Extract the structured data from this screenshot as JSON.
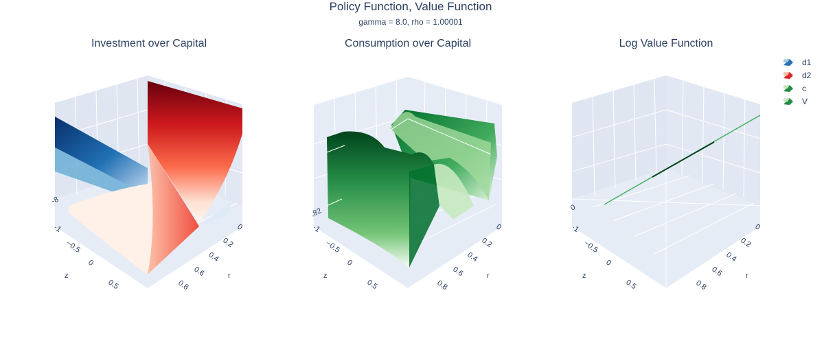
{
  "figure": {
    "title": "Policy Function, Value Function",
    "subtitle": "gamma = 8.0, rho = 1.00001"
  },
  "chart_data": [
    {
      "type": "surface",
      "title": "Investment over Capital",
      "series": [
        {
          "name": "d1",
          "colorscale": "Blues",
          "shape": "flat-sloped-plane"
        },
        {
          "name": "d2",
          "colorscale": "Reds",
          "shape": "parabolic-trough-in-z"
        }
      ],
      "axes": {
        "x": {
          "title": "z",
          "ticks": [
            "-1",
            "−0.5",
            "0",
            "0.5"
          ]
        },
        "y": {
          "title": "r",
          "ticks": [
            "0",
            "0.2",
            "0.4",
            "0.6",
            "0.8"
          ]
        },
        "z": {
          "ticks": [
            "-8"
          ]
        }
      },
      "grid": true
    },
    {
      "type": "surface",
      "title": "Consumption over Capital",
      "series": [
        {
          "name": "c",
          "colorscale": "Greens",
          "shape": "oscillating-ridges-in-z"
        }
      ],
      "axes": {
        "x": {
          "title": "z",
          "ticks": [
            "-1",
            "−0.5",
            "0",
            "0.5"
          ]
        },
        "y": {
          "title": "r",
          "ticks": [
            "0",
            "0.2",
            "0.4",
            "0.6",
            "0.8"
          ]
        },
        "z": {
          "ticks": [
            ".82"
          ]
        }
      },
      "grid": true
    },
    {
      "type": "surface",
      "title": "Log Value Function",
      "series": [
        {
          "name": "V",
          "colorscale": "Greens",
          "shape": "thin-diagonal-line"
        }
      ],
      "axes": {
        "x": {
          "title": "z",
          "ticks": [
            "-1",
            "−0.5",
            "0",
            "0.5"
          ]
        },
        "y": {
          "title": "r",
          "ticks": [
            "0",
            "0.2",
            "0.4",
            "0.6",
            "0.8"
          ]
        },
        "z": {
          "ticks": [
            "0"
          ]
        }
      },
      "grid": true
    }
  ],
  "legend": [
    {
      "name": "d1",
      "color": "#2a6fb0"
    },
    {
      "name": "d2",
      "color": "#d62728"
    },
    {
      "name": "c",
      "color": "#238b45"
    },
    {
      "name": "V",
      "color": "#238b45"
    }
  ],
  "colors": {
    "scene_bg": "#e5ecf6",
    "grid": "#ffffff",
    "text": "#2a3f5f"
  }
}
